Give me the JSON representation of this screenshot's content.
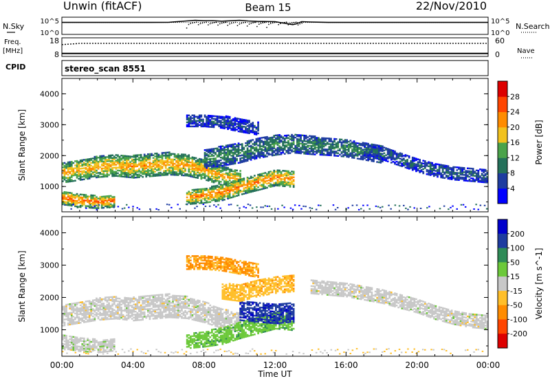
{
  "header": {
    "title": "Unwin (fitACF)",
    "beam": "Beam 15",
    "date": "22/Nov/2010"
  },
  "chart_data": [
    {
      "type": "line",
      "panel": "noise",
      "left_label": "N.Sky",
      "right_label": "N.Search",
      "left_ticks": [
        "10^5",
        "10^0"
      ],
      "right_ticks": [
        "10^5",
        "10^0"
      ],
      "yscale": "log",
      "ylim": [
        1,
        100000
      ],
      "series": [
        {
          "name": "N.Sky",
          "style": "solid",
          "x": [
            0,
            1,
            2,
            3,
            4,
            5,
            6,
            7,
            7.5,
            8,
            8.5,
            9,
            9.5,
            10,
            10.5,
            11,
            12,
            13,
            13.2,
            13.5,
            14,
            15,
            16,
            17,
            18,
            19,
            20,
            21,
            22,
            23,
            24
          ],
          "values": [
            3000,
            3000,
            3000,
            3000,
            3000,
            3000,
            3200,
            8000,
            12000,
            9000,
            10000,
            7000,
            9000,
            12000,
            8000,
            6000,
            5000,
            700,
            1200,
            5000,
            4000,
            3000,
            3000,
            3000,
            3000,
            3000,
            3000,
            3000,
            3000,
            3000,
            3000
          ]
        },
        {
          "name": "N.Search",
          "style": "dotted",
          "x": [
            0,
            24
          ],
          "values": [
            3000,
            3000
          ]
        }
      ]
    },
    {
      "type": "line",
      "panel": "frequency",
      "left_label": "Freq.",
      "left_unit": "[MHz]",
      "right_label": "Nave",
      "left_ticks": [
        "18",
        "8"
      ],
      "right_ticks": [
        "60",
        "0"
      ],
      "ylim_left": [
        8,
        18
      ],
      "ylim_right": [
        0,
        60
      ],
      "series": [
        {
          "name": "Freq.",
          "style": "solid",
          "x": [
            0,
            24
          ],
          "values": [
            9.6,
            9.6
          ]
        },
        {
          "name": "Nave",
          "style": "dotted",
          "x": [
            0,
            1,
            2,
            24
          ],
          "values": [
            38,
            42,
            42,
            42
          ]
        }
      ]
    },
    {
      "type": "table",
      "panel": "cpid",
      "label": "CPID",
      "value": "stereo_scan 8551"
    },
    {
      "type": "heatmap",
      "panel": "power",
      "ylabel": "Slant Range [km]",
      "y_ticks": [
        1000,
        2000,
        3000,
        4000
      ],
      "ylim": [
        180,
        4500
      ],
      "xlim": [
        0,
        24
      ],
      "colorbar": {
        "label": "Power [dB]",
        "ticks": [
          "4",
          "8",
          "12",
          "16",
          "20",
          "24",
          "28"
        ],
        "range": [
          0,
          30
        ],
        "colors": [
          "#0000ff",
          "#1e3ca0",
          "#24705a",
          "#4aa34a",
          "#f2c21e",
          "#ff8c00",
          "#ff4500",
          "#dd0000"
        ]
      },
      "bands": [
        {
          "x": [
            0,
            1,
            2,
            3,
            4,
            5,
            6,
            7,
            8,
            9,
            10
          ],
          "y": [
            1450,
            1550,
            1650,
            1700,
            1650,
            1700,
            1750,
            1700,
            1550,
            1350,
            1250
          ],
          "width": [
            320,
            330,
            340,
            350,
            360,
            360,
            360,
            340,
            320,
            300,
            280
          ],
          "value": 18
        },
        {
          "x": [
            0,
            1,
            2,
            3
          ],
          "y": [
            650,
            560,
            500,
            560
          ],
          "width": [
            220,
            220,
            200,
            200
          ],
          "value": 21
        },
        {
          "x": [
            7,
            8,
            9,
            10,
            11,
            12,
            13
          ],
          "y": [
            650,
            720,
            820,
            1000,
            1150,
            1300,
            1250
          ],
          "width": [
            220,
            240,
            260,
            260,
            260,
            260,
            260
          ],
          "value": 20
        },
        {
          "x": [
            8,
            9,
            10,
            11,
            12,
            13,
            14,
            15,
            16,
            17,
            18
          ],
          "y": [
            1900,
            2000,
            2100,
            2250,
            2350,
            2400,
            2350,
            2300,
            2250,
            2150,
            2050
          ],
          "width": [
            300,
            320,
            320,
            320,
            320,
            300,
            300,
            280,
            280,
            280,
            280
          ],
          "value": 10
        },
        {
          "x": [
            17,
            18,
            19,
            20,
            21,
            22,
            23,
            24
          ],
          "y": [
            2200,
            2100,
            1900,
            1700,
            1550,
            1450,
            1400,
            1350
          ],
          "width": [
            220,
            220,
            220,
            220,
            220,
            220,
            220,
            220
          ],
          "value": 7
        },
        {
          "x": [
            7,
            8,
            9,
            10,
            11
          ],
          "y": [
            3150,
            3150,
            3100,
            3000,
            2900
          ],
          "width": [
            200,
            200,
            200,
            220,
            220
          ],
          "value": 6
        }
      ]
    },
    {
      "type": "heatmap",
      "panel": "velocity",
      "ylabel": "Slant Range [km]",
      "xlabel": "Time UT",
      "x_ticks": [
        "00:00",
        "04:00",
        "08:00",
        "12:00",
        "16:00",
        "20:00",
        "00:00"
      ],
      "y_ticks": [
        1000,
        2000,
        3000,
        4000
      ],
      "ylim": [
        180,
        4500
      ],
      "xlim": [
        0,
        24
      ],
      "colorbar": {
        "label": "Velocity [m s^-1]",
        "ticks": [
          "200",
          "100",
          "50",
          "15",
          "-15",
          "-50",
          "-100",
          "-200"
        ],
        "range": [
          -250,
          250
        ],
        "colors": [
          "#0000cc",
          "#1e3ca0",
          "#2e8b57",
          "#6cc93a",
          "#c8c8c8",
          "#ffbf2a",
          "#ff8c00",
          "#ff4500",
          "#dd0000"
        ]
      },
      "bands": [
        {
          "x": [
            0,
            1,
            2,
            3,
            4,
            5,
            6,
            7,
            8,
            9,
            10
          ],
          "y": [
            1450,
            1550,
            1650,
            1700,
            1650,
            1700,
            1750,
            1700,
            1550,
            1350,
            1250
          ],
          "width": [
            320,
            330,
            340,
            350,
            360,
            360,
            360,
            340,
            320,
            300,
            280
          ],
          "value": 0
        },
        {
          "x": [
            0,
            1,
            2,
            3
          ],
          "y": [
            650,
            560,
            500,
            560
          ],
          "width": [
            220,
            220,
            200,
            200
          ],
          "value": 5
        },
        {
          "x": [
            7,
            8,
            9,
            10,
            11,
            12,
            13
          ],
          "y": [
            650,
            720,
            820,
            1000,
            1150,
            1300,
            1250
          ],
          "width": [
            220,
            240,
            260,
            260,
            260,
            260,
            260
          ],
          "value": 60
        },
        {
          "x": [
            10,
            11,
            12,
            13
          ],
          "y": [
            1600,
            1550,
            1500,
            1550
          ],
          "width": [
            300,
            300,
            300,
            300
          ],
          "value": 180
        },
        {
          "x": [
            9,
            10,
            11,
            12,
            13
          ],
          "y": [
            2200,
            2150,
            2300,
            2400,
            2450
          ],
          "width": [
            240,
            260,
            260,
            260,
            260
          ],
          "value": -60
        },
        {
          "x": [
            14,
            15,
            16,
            17,
            18,
            19,
            20,
            21,
            22,
            23,
            24
          ],
          "y": [
            2350,
            2300,
            2250,
            2150,
            2050,
            1900,
            1750,
            1550,
            1400,
            1300,
            1250
          ],
          "width": [
            220,
            220,
            220,
            220,
            220,
            220,
            220,
            220,
            220,
            220,
            220
          ],
          "value": 0
        },
        {
          "x": [
            7,
            8,
            9,
            10,
            11
          ],
          "y": [
            3100,
            3100,
            3050,
            2950,
            2850
          ],
          "width": [
            220,
            220,
            220,
            220,
            220
          ],
          "value": -90
        }
      ]
    }
  ]
}
